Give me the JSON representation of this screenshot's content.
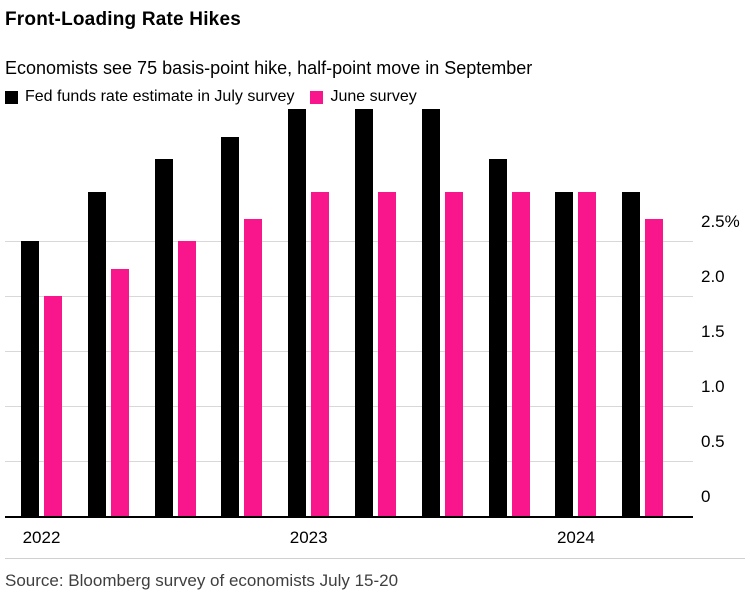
{
  "header": {
    "title": "Front-Loading Rate Hikes",
    "subtitle": "Economists see 75 basis-point hike, half-point move in September"
  },
  "legend": [
    {
      "label": "Fed funds rate estimate in July survey",
      "color": "#000000"
    },
    {
      "label": "June survey",
      "color": "#f9168c"
    }
  ],
  "footer": {
    "source": "Source: Bloomberg survey of economists July 15-20"
  },
  "chart_data": {
    "type": "bar",
    "title": "Front-Loading Rate Hikes",
    "subtitle": "Economists see 75 basis-point hike, half-point move in September",
    "groups": 10,
    "series": [
      {
        "name": "Fed funds rate estimate in July survey",
        "color": "#000000",
        "values": [
          2.5,
          2.95,
          3.25,
          3.45,
          3.7,
          3.7,
          3.7,
          3.25,
          2.95,
          2.95
        ]
      },
      {
        "name": "June survey",
        "color": "#f9168c",
        "values": [
          2.0,
          2.25,
          2.5,
          2.7,
          2.95,
          2.95,
          2.95,
          2.95,
          2.95,
          2.7
        ]
      }
    ],
    "x_year_labels": [
      {
        "label": "2022",
        "group_index": 0
      },
      {
        "label": "2023",
        "group_index": 4
      },
      {
        "label": "2024",
        "group_index": 8
      }
    ],
    "y_ticks": [
      {
        "value": 0,
        "label": "0"
      },
      {
        "value": 0.5,
        "label": "0.5"
      },
      {
        "value": 1.0,
        "label": "1.0"
      },
      {
        "value": 1.5,
        "label": "1.5"
      },
      {
        "value": 2.0,
        "label": "2.0"
      },
      {
        "value": 2.5,
        "label": "2.5%"
      }
    ],
    "ylim": [
      0,
      3.72
    ],
    "grid": true,
    "legend_position": "top",
    "source": "Source: Bloomberg survey of economists July 15-20"
  }
}
